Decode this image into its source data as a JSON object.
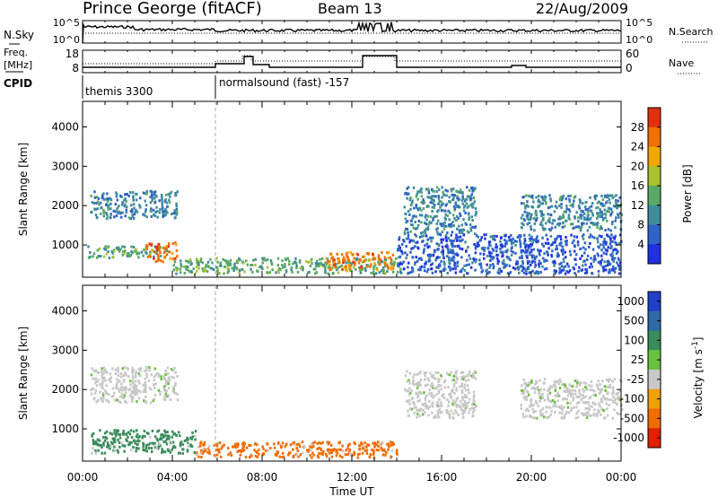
{
  "header": {
    "station": "Prince George (fitACF)",
    "beam": "Beam 13",
    "date": "22/Aug/2009"
  },
  "noise_panel": {
    "left_label": "N.Sky",
    "right_label": "N.Search",
    "left_ticks": [
      "10^5",
      "10^0"
    ],
    "right_ticks": [
      "10^5",
      "10^0"
    ]
  },
  "freq_panel": {
    "left_label_line1": "Freq.",
    "left_label_line2": "[MHz]",
    "right_label": "Nave",
    "left_ticks": [
      "18",
      "8"
    ],
    "right_ticks": [
      "60",
      "0"
    ]
  },
  "cpid": {
    "label": "CPID",
    "segments": [
      {
        "name": "themis 3300",
        "start_hour": 0.0
      },
      {
        "name": "normalsound (fast) -157",
        "start_hour": 5.97
      }
    ]
  },
  "x_axis": {
    "title": "Time UT",
    "range_hours": [
      0,
      24
    ],
    "tick_hours": [
      0,
      4,
      8,
      12,
      16,
      20,
      24
    ],
    "tick_labels": [
      "00:00",
      "04:00",
      "08:00",
      "12:00",
      "16:00",
      "20:00",
      "00:00"
    ]
  },
  "chart_data": [
    {
      "type": "heatmap",
      "title": "",
      "xlabel": "Time UT",
      "ylabel": "Slant Range [km]",
      "xlim_hours": [
        0,
        24
      ],
      "ylim_km": [
        180,
        4650
      ],
      "yticks": [
        1000,
        2000,
        3000,
        4000
      ],
      "colorbar": {
        "label": "Power [dB]",
        "range": [
          0,
          32
        ],
        "tick_values": [
          4,
          8,
          12,
          16,
          20,
          24,
          28
        ],
        "tick_labels": [
          "4",
          "8",
          "12",
          "16",
          "20",
          "24",
          "28"
        ],
        "colors": [
          "#2030e0",
          "#2f63c8",
          "#3f8c9c",
          "#5aa868",
          "#a8c232",
          "#f0a800",
          "#f07000",
          "#e03010"
        ]
      },
      "features": [
        {
          "desc": "E/F scatter",
          "t_start": 0.2,
          "t_end": 3.8,
          "range_km": [
            700,
            1000
          ],
          "value": 12
        },
        {
          "desc": "intense patch",
          "t_start": 2.8,
          "t_end": 4.2,
          "range_km": [
            600,
            1100
          ],
          "value": 26
        },
        {
          "desc": "far range band",
          "t_start": 0.3,
          "t_end": 4.2,
          "range_km": [
            1700,
            2400
          ],
          "value": 10
        },
        {
          "desc": "near range band",
          "t_start": 4.0,
          "t_end": 14.2,
          "range_km": [
            300,
            700
          ],
          "value": 12
        },
        {
          "desc": "midday enhancement",
          "t_start": 10.8,
          "t_end": 13.8,
          "range_km": [
            400,
            850
          ],
          "value": 24
        },
        {
          "desc": "evening echoes",
          "t_start": 14.0,
          "t_end": 24.0,
          "range_km": [
            300,
            1300
          ],
          "value": 6
        },
        {
          "desc": "evening descending arc",
          "t_start": 14.3,
          "t_end": 17.5,
          "range_km": [
            1300,
            2500
          ],
          "value": 9
        },
        {
          "desc": "late arc",
          "t_start": 19.5,
          "t_end": 24.0,
          "range_km": [
            1400,
            2300
          ],
          "value": 8
        }
      ]
    },
    {
      "type": "heatmap",
      "title": "",
      "xlabel": "Time UT",
      "ylabel": "Slant Range [km]",
      "xlim_hours": [
        0,
        24
      ],
      "ylim_km": [
        180,
        4650
      ],
      "yticks": [
        1000,
        2000,
        3000,
        4000
      ],
      "colorbar": {
        "label": "Velocity [m s^-1]",
        "tick_labels": [
          "1000",
          "500",
          "100",
          "25",
          "-25",
          "-100",
          "-500",
          "-1000"
        ],
        "colors": [
          "#2040c8",
          "#2f6aa8",
          "#3a8c5c",
          "#6cc040",
          "#c8c8c8",
          "#f0a000",
          "#f06c00",
          "#e02000"
        ]
      },
      "features": [
        {
          "desc": "ground scatter band",
          "t_start": 0.3,
          "t_end": 4.2,
          "range_km": [
            1700,
            2600
          ],
          "value_ms": 0
        },
        {
          "desc": "positive velocity near range",
          "t_start": 0.3,
          "t_end": 5.0,
          "range_km": [
            400,
            1000
          ],
          "value_ms": 150
        },
        {
          "desc": "negative velocity band",
          "t_start": 5.0,
          "t_end": 14.0,
          "range_km": [
            300,
            700
          ],
          "value_ms": -120
        },
        {
          "desc": "evening ground scatter arc",
          "t_start": 14.3,
          "t_end": 17.5,
          "range_km": [
            1300,
            2500
          ],
          "value_ms": 0
        },
        {
          "desc": "late ground scatter",
          "t_start": 19.5,
          "t_end": 24.0,
          "range_km": [
            1300,
            2300
          ],
          "value_ms": 0
        }
      ]
    }
  ]
}
